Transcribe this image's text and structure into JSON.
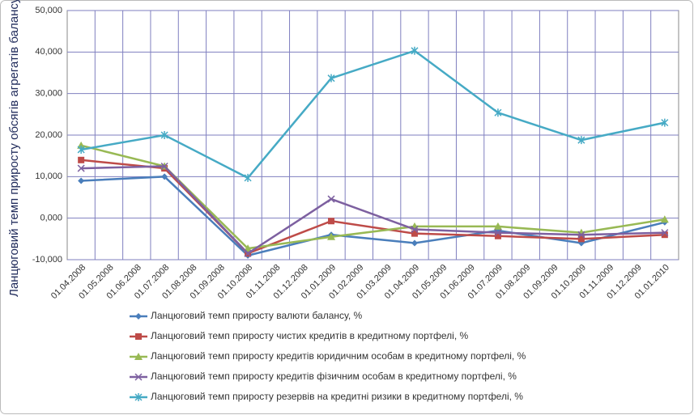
{
  "chart_data": {
    "type": "line",
    "y_label": "Ланцюговий темп приросту обсягів агрегатів балансу в %",
    "categories": [
      "01.04.2008",
      "01.05.2008",
      "01.06.2008",
      "01.07.2008",
      "01.08.2008",
      "01.09.2008",
      "01.10.2008",
      "01.11.2008",
      "01.12.2008",
      "01.01.2009",
      "01.02.2009",
      "01.03.2009",
      "01.04.2009",
      "01.05.2009",
      "01.06.2009",
      "01.07.2009",
      "01.08.2009",
      "01.09.2009",
      "01.10.2009",
      "01.11.2009",
      "01.12.2009",
      "01.01.2010"
    ],
    "x": [
      "01.04.2008",
      "01.07.2008",
      "01.10.2008",
      "01.01.2009",
      "01.04.2009",
      "01.07.2009",
      "01.10.2009",
      "01.01.2010"
    ],
    "ylim": [
      -10,
      50
    ],
    "yticks": [
      {
        "value": -10,
        "label": "-10,000"
      },
      {
        "value": 0,
        "label": "0,000"
      },
      {
        "value": 10,
        "label": "10,000"
      },
      {
        "value": 20,
        "label": "20,000"
      },
      {
        "value": 30,
        "label": "30,000"
      },
      {
        "value": 40,
        "label": "40,000"
      },
      {
        "value": 50,
        "label": "50,000"
      }
    ],
    "grid": true,
    "series": [
      {
        "name": "Ланцюговий темп приросту валюти балансу, %",
        "color": "#4a7ebb",
        "marker": "diamond",
        "values": [
          9,
          10,
          -9,
          -4,
          -6,
          -3,
          -6,
          -1
        ]
      },
      {
        "name": "Ланцюговий темп приросту чистих кредитів в кредитному портфелі, %",
        "color": "#be4b48",
        "marker": "square",
        "values": [
          14,
          12,
          -8.5,
          -0.7,
          -3.7,
          -4.3,
          -5,
          -4
        ]
      },
      {
        "name": "Ланцюговий темп приросту кредитів юридичним особам в кредитному портфелі, %",
        "color": "#98b954",
        "marker": "triangle",
        "values": [
          17.5,
          12.5,
          -7.3,
          -4.5,
          -2,
          -2,
          -3.5,
          -0.3
        ]
      },
      {
        "name": "Ланцюговий темп приросту кредитів фізичним особам в кредитному портфелі, %",
        "color": "#7d60a0",
        "marker": "x",
        "values": [
          12,
          12.5,
          -8.5,
          4.6,
          -2.7,
          -3.5,
          -4,
          -3.5
        ]
      },
      {
        "name": "Ланцюговий темп приросту резервів на кредитні ризики в кредитному портфелі, %",
        "color": "#46aac5",
        "marker": "star",
        "values": [
          16.5,
          20,
          9.7,
          33.7,
          40.3,
          25.4,
          18.8,
          23
        ]
      }
    ]
  }
}
